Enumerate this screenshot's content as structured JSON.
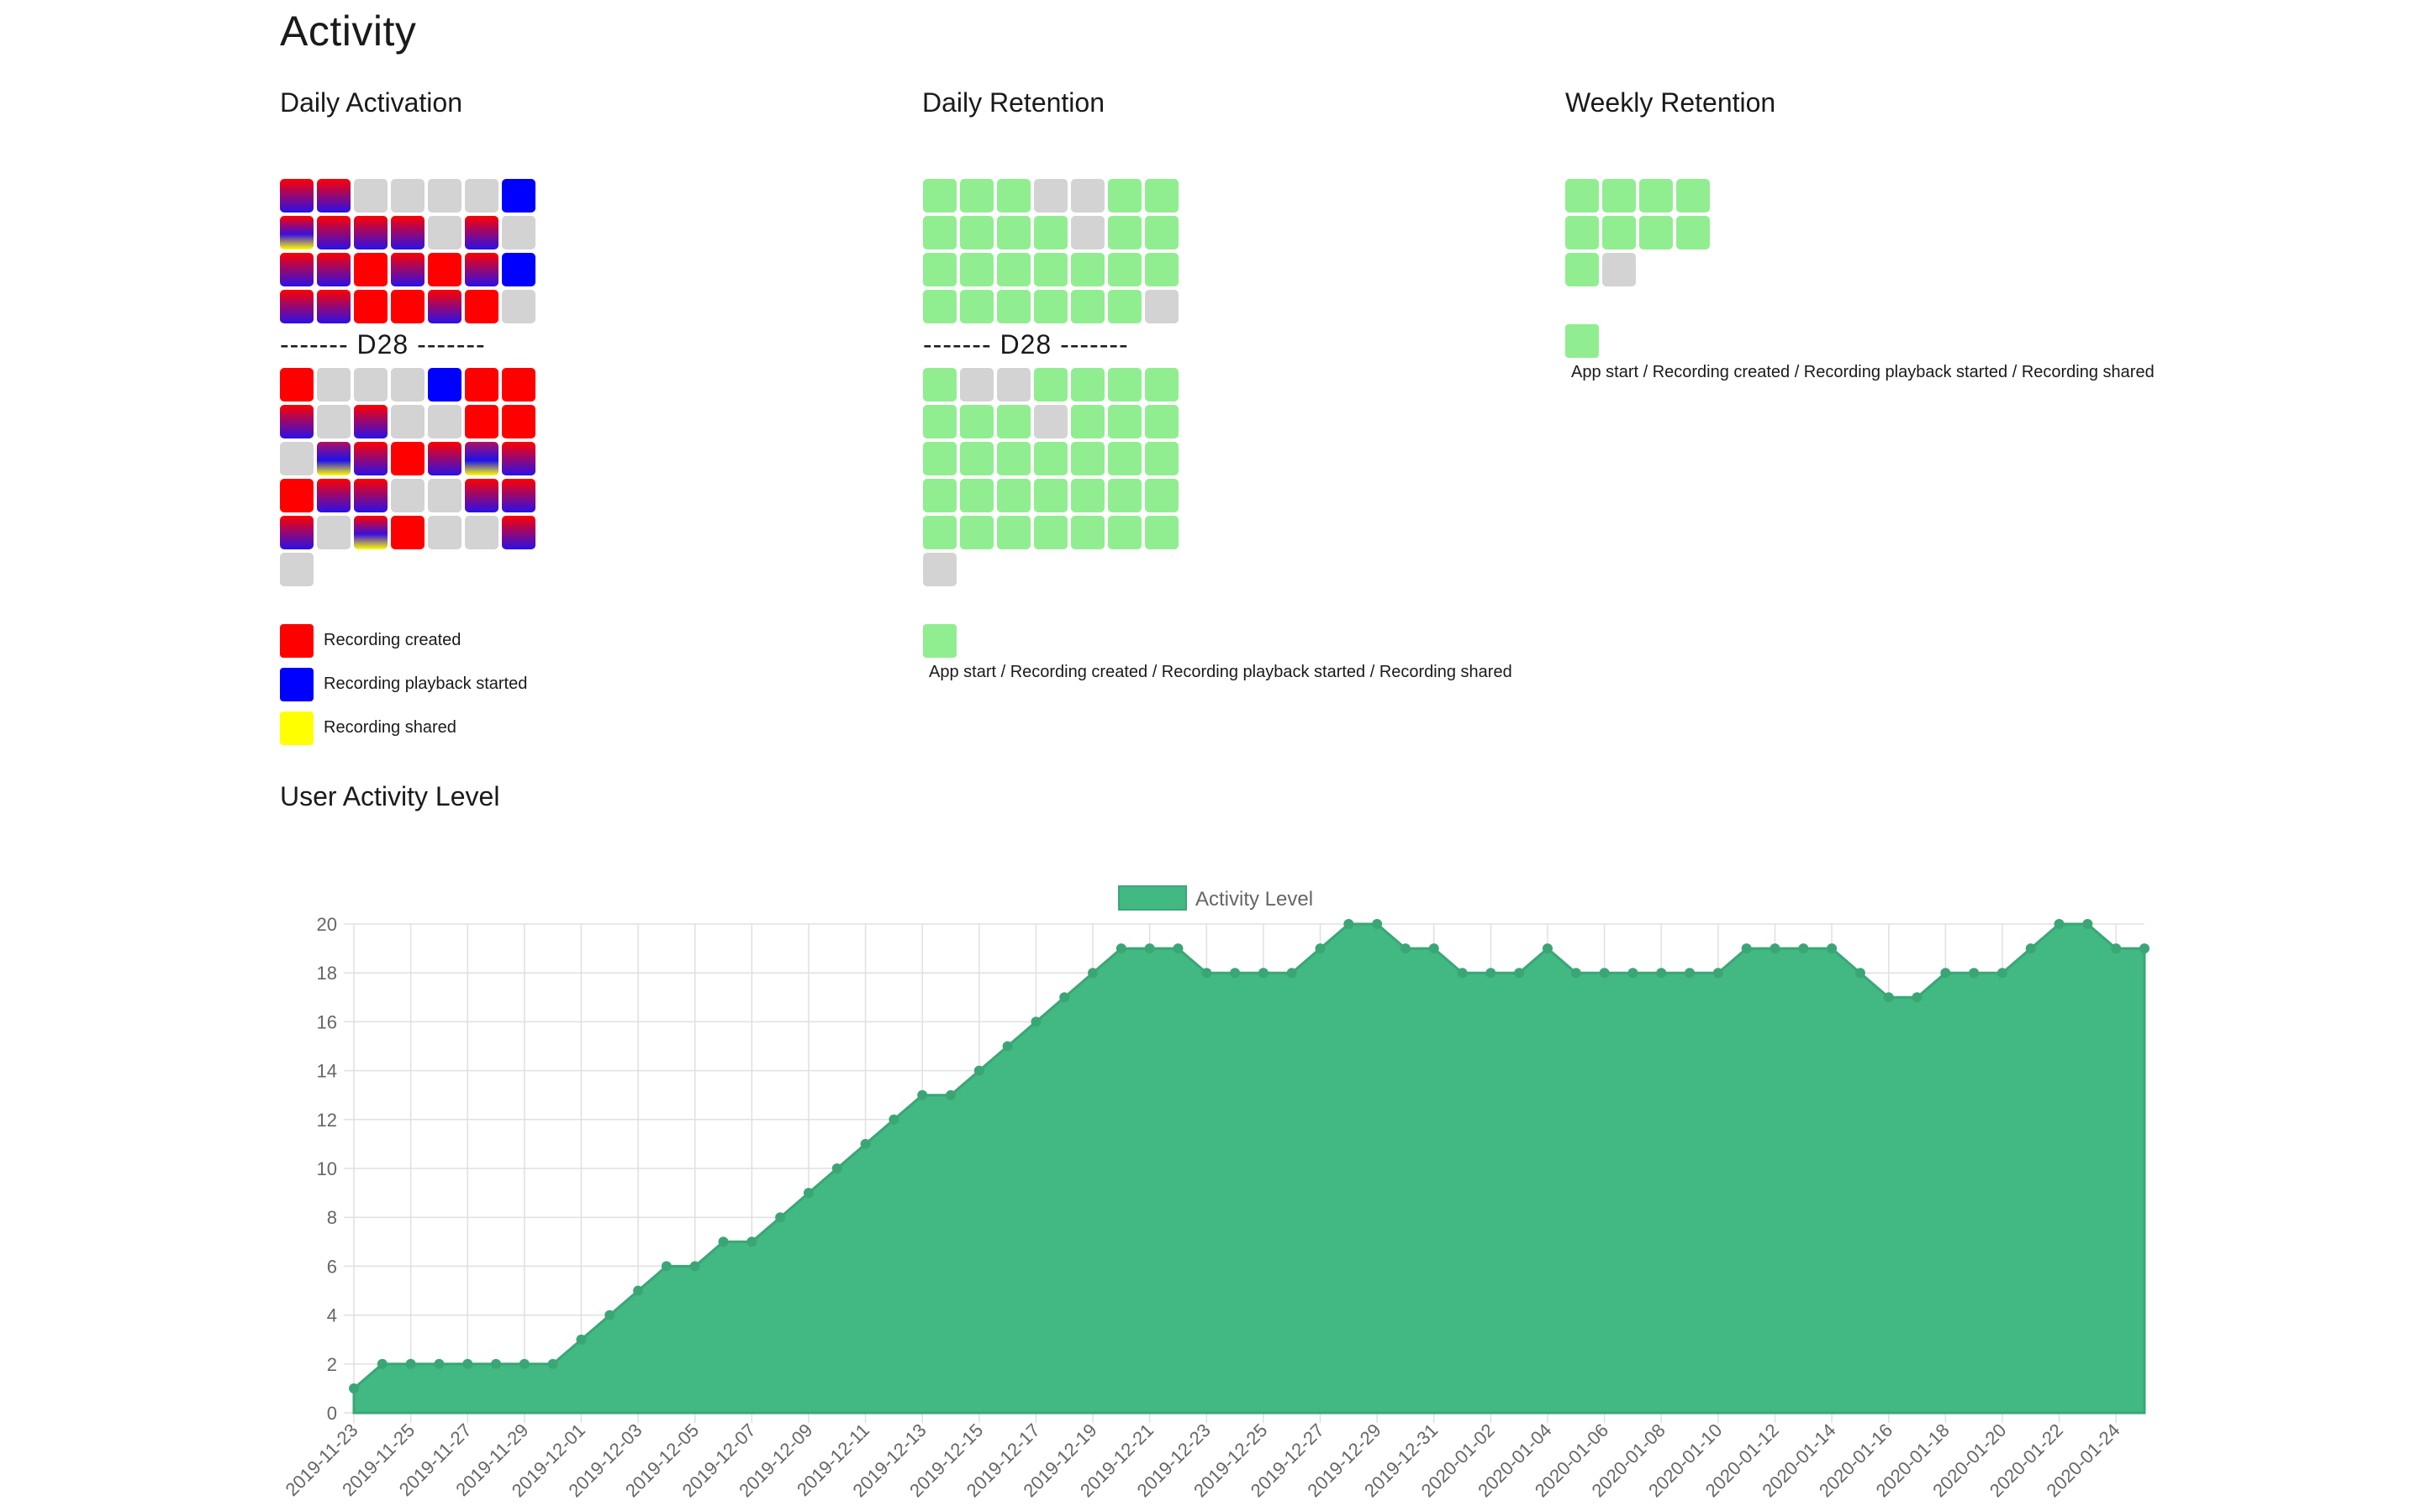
{
  "page": {
    "title": "Activity"
  },
  "sections": {
    "daily_activation": "Daily Activation",
    "daily_retention": "Daily Retention",
    "weekly_retention": "Weekly Retention",
    "user_activity_level": "User Activity Level"
  },
  "divider_label": "------- D28 -------",
  "activation": {
    "top_rows": [
      [
        "rb",
        "rb",
        "n",
        "n",
        "n",
        "n",
        "b"
      ],
      [
        "rby",
        "rb",
        "rb",
        "rb",
        "n",
        "rb",
        "n"
      ],
      [
        "rb",
        "rb",
        "r",
        "rb",
        "r",
        "rb",
        "b"
      ],
      [
        "rb",
        "rb",
        "r",
        "r",
        "rb",
        "r",
        "n"
      ]
    ],
    "bottom_rows": [
      [
        "r",
        "n",
        "n",
        "n",
        "b",
        "r",
        "r"
      ],
      [
        "rb",
        "n",
        "rb",
        "n",
        "n",
        "r",
        "r"
      ],
      [
        "n",
        "by",
        "rb",
        "r",
        "rb",
        "by",
        "rb"
      ],
      [
        "r",
        "rb",
        "rb",
        "n",
        "n",
        "rb",
        "rb"
      ],
      [
        "rb",
        "n",
        "rby",
        "r",
        "n",
        "n",
        "rb"
      ],
      [
        "n"
      ]
    ],
    "legend": [
      {
        "label": "Recording created",
        "color": "#ff0000"
      },
      {
        "label": "Recording playback started",
        "color": "#0000ff"
      },
      {
        "label": "Recording shared",
        "color": "#ffff00"
      }
    ]
  },
  "retention": {
    "top_rows": [
      [
        "g",
        "g",
        "g",
        "n",
        "n",
        "g",
        "g"
      ],
      [
        "g",
        "g",
        "g",
        "g",
        "n",
        "g",
        "g"
      ],
      [
        "g",
        "g",
        "g",
        "g",
        "g",
        "g",
        "g"
      ],
      [
        "g",
        "g",
        "g",
        "g",
        "g",
        "g",
        "n"
      ]
    ],
    "bottom_rows": [
      [
        "g",
        "n",
        "n",
        "g",
        "g",
        "g",
        "g"
      ],
      [
        "g",
        "g",
        "g",
        "n",
        "g",
        "g",
        "g"
      ],
      [
        "g",
        "g",
        "g",
        "g",
        "g",
        "g",
        "g"
      ],
      [
        "g",
        "g",
        "g",
        "g",
        "g",
        "g",
        "g"
      ],
      [
        "g",
        "g",
        "g",
        "g",
        "g",
        "g",
        "g"
      ],
      [
        "n"
      ]
    ],
    "legend_label": "App start / Recording created / Recording playback started / Recording shared",
    "legend_color": "#90ee90"
  },
  "weekly": {
    "rows": [
      [
        "g",
        "g",
        "g",
        "g"
      ],
      [
        "g",
        "g",
        "g",
        "g"
      ],
      [
        "g",
        "n"
      ]
    ],
    "legend_label": "App start / Recording created / Recording playback started / Recording shared",
    "legend_color": "#90ee90"
  },
  "colors": {
    "fill": "#42b883",
    "grid": "#e0e0e0",
    "empty": "#d3d3d3",
    "retained": "#90ee90"
  },
  "chart_data": {
    "type": "area",
    "legend": "Activity Level",
    "legend_position": "top",
    "grid": true,
    "ylim": [
      0,
      20
    ],
    "yticks": [
      0,
      2,
      4,
      6,
      8,
      10,
      12,
      14,
      16,
      18,
      20
    ],
    "x_start": "2019-11-23",
    "x": [
      "2019-11-23",
      "2019-11-24",
      "2019-11-25",
      "2019-11-26",
      "2019-11-27",
      "2019-11-28",
      "2019-11-29",
      "2019-11-30",
      "2019-12-01",
      "2019-12-02",
      "2019-12-03",
      "2019-12-04",
      "2019-12-05",
      "2019-12-06",
      "2019-12-07",
      "2019-12-08",
      "2019-12-09",
      "2019-12-10",
      "2019-12-11",
      "2019-12-12",
      "2019-12-13",
      "2019-12-14",
      "2019-12-15",
      "2019-12-16",
      "2019-12-17",
      "2019-12-18",
      "2019-12-19",
      "2019-12-20",
      "2019-12-21",
      "2019-12-22",
      "2019-12-23",
      "2019-12-24",
      "2019-12-25",
      "2019-12-26",
      "2019-12-27",
      "2019-12-28",
      "2019-12-29",
      "2019-12-30",
      "2019-12-31",
      "2020-01-01",
      "2020-01-02",
      "2020-01-03",
      "2020-01-04",
      "2020-01-05",
      "2020-01-06",
      "2020-01-07",
      "2020-01-08",
      "2020-01-09",
      "2020-01-10",
      "2020-01-11",
      "2020-01-12",
      "2020-01-13",
      "2020-01-14",
      "2020-01-15",
      "2020-01-16",
      "2020-01-17",
      "2020-01-18",
      "2020-01-19",
      "2020-01-20",
      "2020-01-21",
      "2020-01-22",
      "2020-01-23",
      "2020-01-24",
      "2020-01-25"
    ],
    "values": [
      1,
      2,
      2,
      2,
      2,
      2,
      2,
      2,
      3,
      4,
      5,
      6,
      6,
      7,
      7,
      8,
      9,
      10,
      11,
      12,
      13,
      13,
      14,
      15,
      16,
      17,
      18,
      19,
      19,
      19,
      18,
      18,
      18,
      18,
      19,
      20,
      20,
      19,
      19,
      18,
      18,
      18,
      19,
      18,
      18,
      18,
      18,
      18,
      18,
      19,
      19,
      19,
      19,
      18,
      17,
      17,
      18,
      18,
      18,
      19,
      20,
      20,
      19,
      19
    ],
    "x_tick_labels": [
      "2019-11-23",
      "2019-11-25",
      "2019-11-27",
      "2019-11-29",
      "2019-12-01",
      "2019-12-03",
      "2019-12-05",
      "2019-12-07",
      "2019-12-09",
      "2019-12-11",
      "2019-12-13",
      "2019-12-15",
      "2019-12-17",
      "2019-12-19",
      "2019-12-21",
      "2019-12-23",
      "2019-12-25",
      "2019-12-27",
      "2019-12-29",
      "2019-12-31",
      "2020-01-02",
      "2020-01-04",
      "2020-01-06",
      "2020-01-08",
      "2020-01-10",
      "2020-01-12",
      "2020-01-14",
      "2020-01-16",
      "2020-01-18",
      "2020-01-20",
      "2020-01-22",
      "2020-01-24"
    ]
  }
}
